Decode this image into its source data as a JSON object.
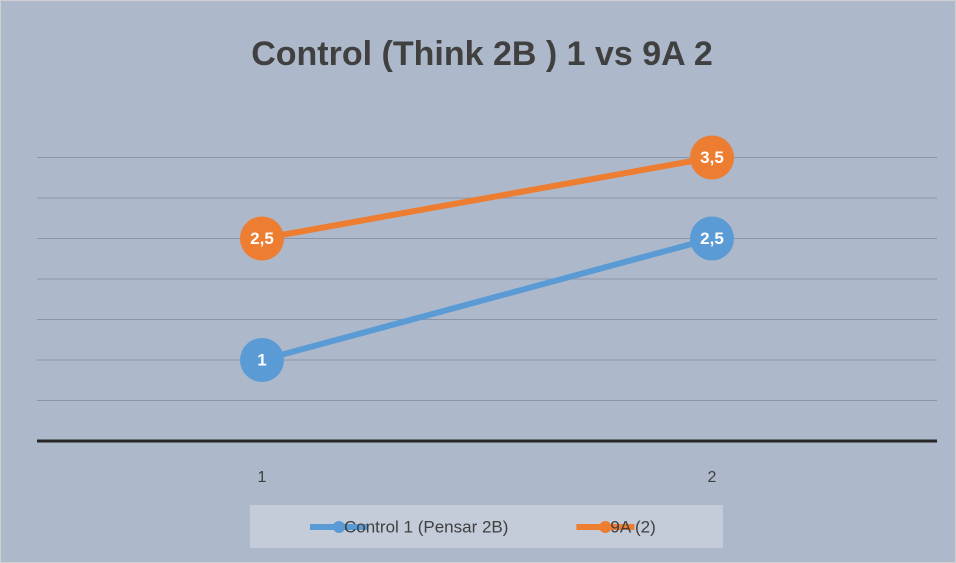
{
  "chart_data": {
    "type": "line",
    "title": "Control (Think 2B ) 1 vs 9A 2",
    "categories": [
      "1",
      "2"
    ],
    "series": [
      {
        "name": "Control 1 (Pensar 2B)",
        "color": "#5b9bd5",
        "values": [
          1,
          2.5
        ],
        "value_labels": [
          "1",
          "2,5"
        ]
      },
      {
        "name": "9A (2)",
        "color": "#ed7d31",
        "values": [
          2.5,
          3.5
        ],
        "value_labels": [
          "2,5",
          "3,5"
        ]
      }
    ],
    "ylim": [
      0,
      4
    ],
    "yticks": [
      0.5,
      1,
      1.5,
      2,
      2.5,
      3,
      3.5
    ],
    "grid": true,
    "legend": "bottom"
  }
}
